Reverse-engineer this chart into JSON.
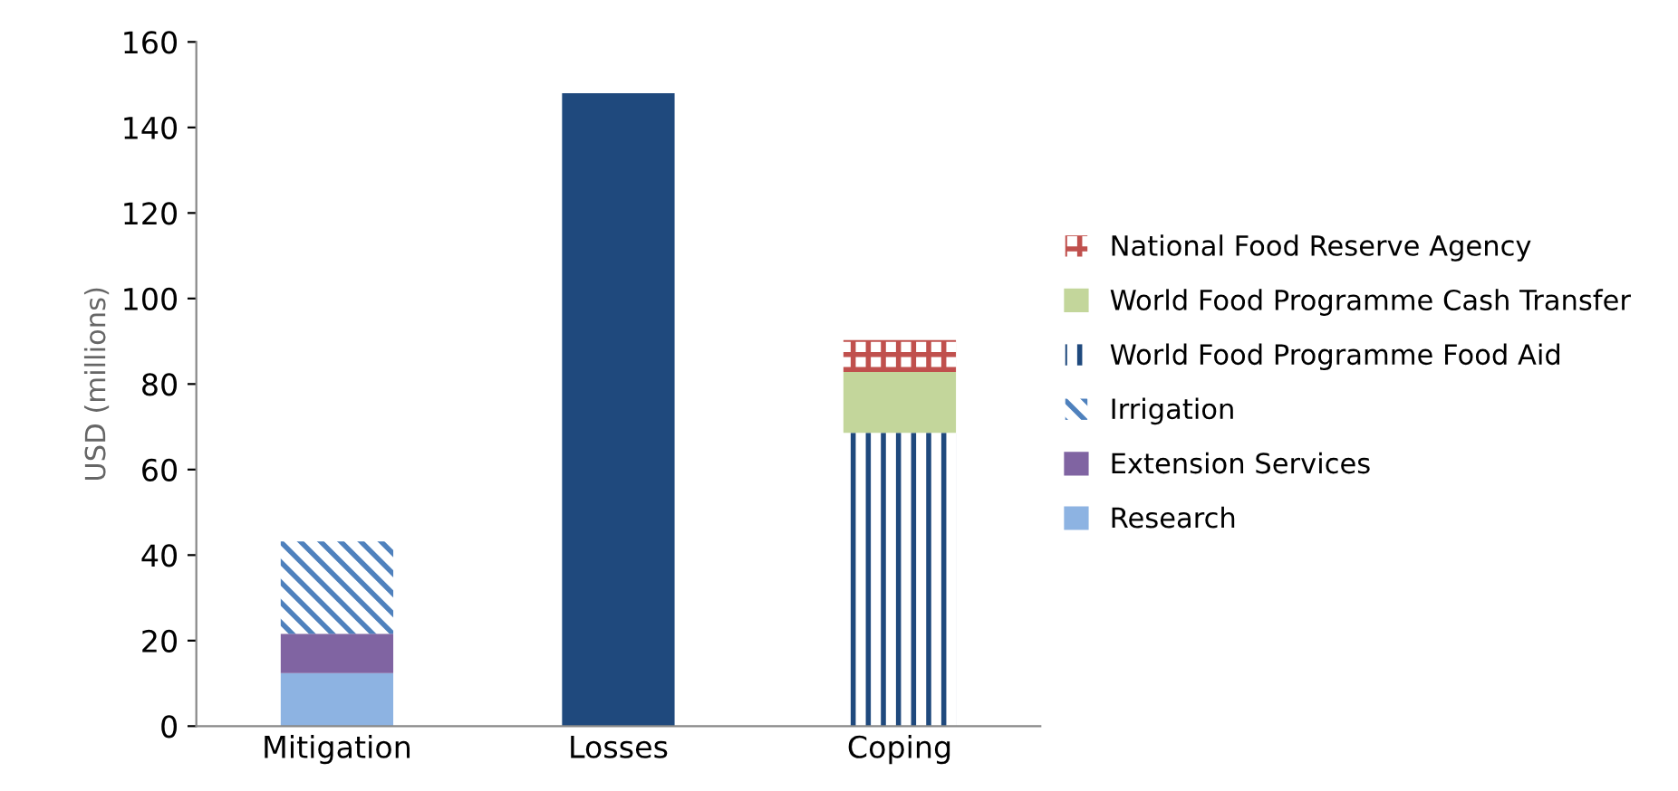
{
  "chart_data": {
    "type": "bar",
    "stacked": true,
    "ylabel": "USD (millions)",
    "categories": [
      "Mitigation",
      "Losses",
      "Coping"
    ],
    "series": [
      {
        "name": "Research",
        "color": "#8db3e2",
        "values": [
          12.4,
          null,
          null
        ]
      },
      {
        "name": "Extension Services",
        "color": "#8064a2",
        "values": [
          9.2,
          null,
          null
        ]
      },
      {
        "name": "Irrigation",
        "color": "#4f81bd",
        "values": [
          21.6,
          null,
          null
        ]
      },
      {
        "color": "#1f497d",
        "values": [
          null,
          148,
          null
        ]
      },
      {
        "name": "World Food Programme Food Aid",
        "color": "#1f497d",
        "values": [
          null,
          null,
          68.6
        ]
      },
      {
        "name": "World Food Programme Cash Transfer",
        "color": "#c3d69b",
        "values": [
          null,
          null,
          14.2
        ]
      },
      {
        "name": "National Food Reserve Agency",
        "color": "#c0504d",
        "values": [
          null,
          null,
          7.5
        ]
      }
    ],
    "ylim": [
      0,
      160
    ],
    "yticks": [
      0,
      20,
      40,
      60,
      80,
      100,
      120,
      140,
      160
    ],
    "grid": false,
    "legend": "right"
  }
}
